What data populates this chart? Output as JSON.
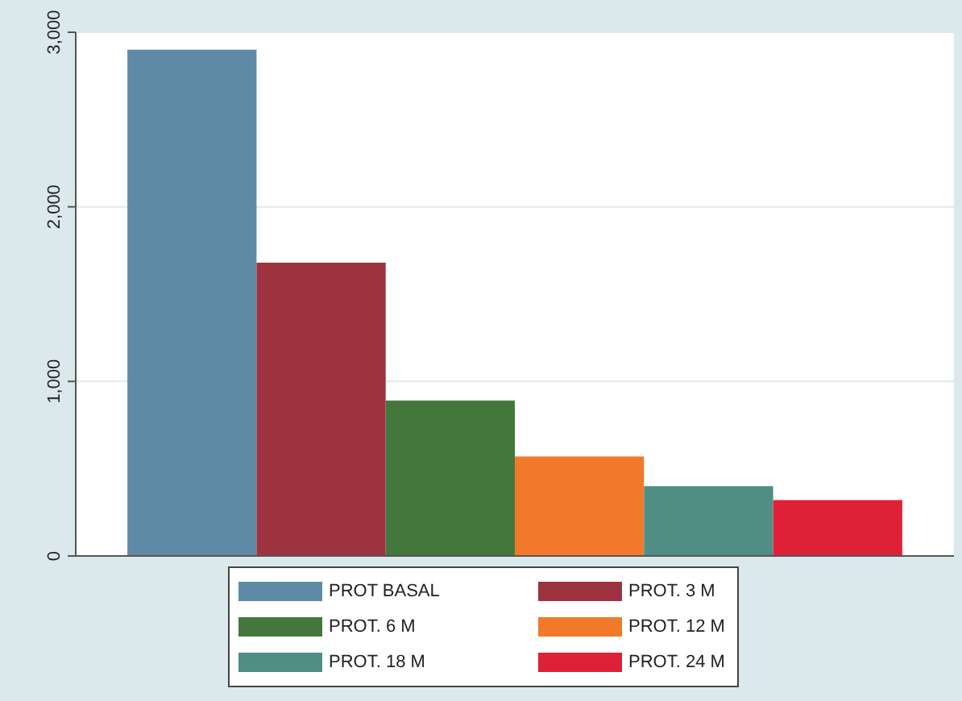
{
  "chart_data": {
    "type": "bar",
    "categories": [
      null
    ],
    "series": [
      {
        "name": "PROT BASAL",
        "color": "#5f8aa6",
        "values": [
          2900
        ]
      },
      {
        "name": "PROT. 3 M",
        "color": "#9e3340",
        "values": [
          1680
        ]
      },
      {
        "name": "PROT. 6 M",
        "color": "#44773c",
        "values": [
          890
        ]
      },
      {
        "name": "PROT. 12 M",
        "color": "#f07a2a",
        "values": [
          570
        ]
      },
      {
        "name": "PROT. 18 M",
        "color": "#4f8d85",
        "values": [
          400
        ]
      },
      {
        "name": "PROT. 24 M",
        "color": "#de2137",
        "values": [
          320
        ]
      }
    ],
    "ylim": [
      0,
      3000
    ],
    "yticks": [
      0,
      {
        "value": 1000,
        "label": "1,000"
      },
      {
        "value": 2000,
        "label": "2,000"
      },
      {
        "value": 3000,
        "label": "3,000"
      }
    ],
    "grid": "y",
    "legend": "bottom"
  }
}
